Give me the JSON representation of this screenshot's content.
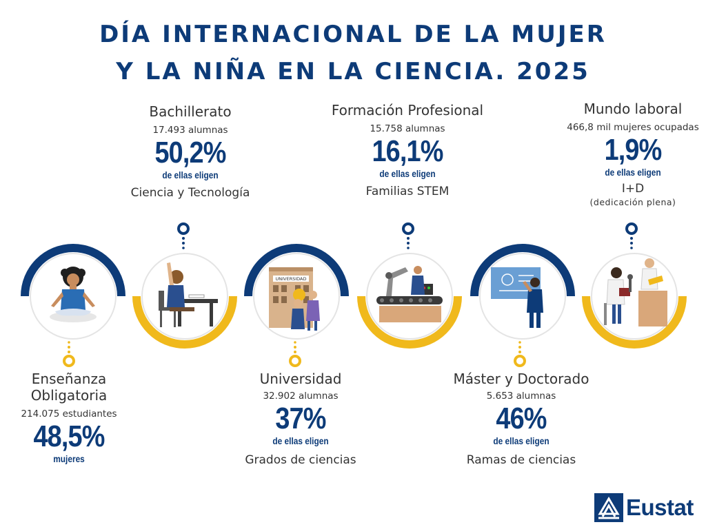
{
  "title": {
    "line1": "DÍA INTERNACIONAL DE LA MUJER",
    "line2": "Y LA NIÑA EN LA CIENCIA. 2025"
  },
  "stages": [
    {
      "name": "Enseñanza",
      "name2": "Obligatoria",
      "count": "214.075 estudiantes",
      "percent": "48,5%",
      "sub": "mujeres"
    },
    {
      "name": "Bachillerato",
      "count": "17.493 alumnas",
      "percent": "50,2%",
      "sub": "de ellas eligen",
      "field": "Ciencia y Tecnología"
    },
    {
      "name": "Universidad",
      "count": "32.902 alumnas",
      "percent": "37%",
      "sub": "de ellas eligen",
      "field": "Grados de ciencias"
    },
    {
      "name": "Formación Profesional",
      "count": "15.758 alumnas",
      "percent": "16,1%",
      "sub": "de ellas eligen",
      "field": "Familias STEM"
    },
    {
      "name": "Máster y Doctorado",
      "count": "5.653 alumnas",
      "percent": "46%",
      "sub": "de ellas eligen",
      "field": "Ramas de ciencias"
    },
    {
      "name": "Mundo laboral",
      "count": "466,8 mil mujeres ocupadas",
      "percent": "1,9%",
      "sub": "de ellas eligen",
      "field": "I+D",
      "note": "(dedicación plena)"
    }
  ],
  "illustrations": {
    "university_sign": "UNIVERSIDAD"
  },
  "logo": {
    "text": "Eustat"
  },
  "colors": {
    "navy": "#0d3b78",
    "yellow": "#f0b91c",
    "text": "#333333"
  }
}
